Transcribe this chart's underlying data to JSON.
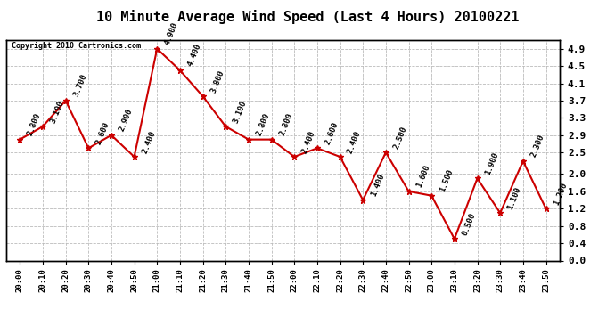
{
  "title": "10 Minute Average Wind Speed (Last 4 Hours) 20100221",
  "copyright": "Copyright 2010 Cartronics.com",
  "x_labels": [
    "20:00",
    "20:10",
    "20:20",
    "20:30",
    "20:40",
    "20:50",
    "21:00",
    "21:10",
    "21:20",
    "21:30",
    "21:40",
    "21:50",
    "22:00",
    "22:10",
    "22:20",
    "22:30",
    "22:40",
    "22:50",
    "23:00",
    "23:10",
    "23:20",
    "23:30",
    "23:40",
    "23:50"
  ],
  "y_values": [
    2.8,
    3.1,
    3.7,
    2.6,
    2.9,
    2.4,
    4.9,
    4.4,
    3.8,
    3.1,
    2.8,
    2.8,
    2.4,
    2.6,
    2.4,
    1.4,
    2.5,
    1.6,
    1.5,
    0.5,
    1.9,
    1.1,
    2.3,
    1.2
  ],
  "point_labels": [
    "2.800",
    "3.100",
    "3.700",
    "2.600",
    "2.900",
    "2.400",
    "4.900",
    "4.400",
    "3.800",
    "3.100",
    "2.800",
    "2.800",
    "2.400",
    "2.600",
    "2.400",
    "1.400",
    "2.500",
    "1.600",
    "1.500",
    "0.500",
    "1.900",
    "1.100",
    "2.300",
    "1.200"
  ],
  "line_color": "#cc0000",
  "marker_color": "#cc0000",
  "background_color": "#ffffff",
  "grid_color": "#bbbbbb",
  "ylim_min": 0.0,
  "ylim_max": 5.1,
  "yticks_right": [
    0.0,
    0.4,
    0.8,
    1.2,
    1.6,
    2.0,
    2.5,
    2.9,
    3.3,
    3.7,
    4.1,
    4.5,
    4.9
  ],
  "title_fontsize": 11,
  "label_fontsize": 6.5,
  "xlabel_fontsize": 6.5,
  "ylabel_fontsize": 8
}
